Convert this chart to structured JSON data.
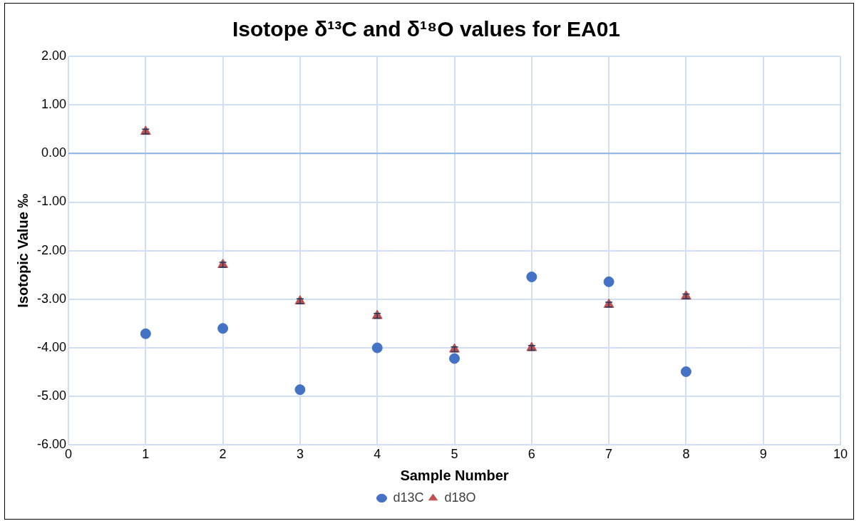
{
  "chart_data": {
    "type": "scatter",
    "title": "Isotope δ¹³C and δ¹⁸O values for EA01",
    "xlabel": "Sample Number",
    "ylabel": "Isotopic Value ‰",
    "x": [
      1,
      2,
      3,
      4,
      5,
      6,
      7,
      8
    ],
    "series": [
      {
        "name": "d13C",
        "color": "#4472c4",
        "marker": "circle",
        "values": [
          -3.71,
          -3.6,
          -4.86,
          -4.0,
          -4.22,
          -2.54,
          -2.64,
          -4.49
        ]
      },
      {
        "name": "d18O",
        "color": "#c0504d",
        "marker": "triangle",
        "values": [
          0.45,
          -2.29,
          -3.04,
          -3.34,
          -4.03,
          -4.0,
          -3.11,
          -2.94
        ],
        "errors": [
          0.05,
          0.05,
          0.05,
          0.05,
          0.05,
          0.05,
          0.05,
          0.05
        ]
      }
    ],
    "xlim": [
      0,
      10
    ],
    "xticks": [
      0,
      1,
      2,
      3,
      4,
      5,
      6,
      7,
      8,
      9,
      10
    ],
    "ylim": [
      -6,
      2
    ],
    "yticks": [
      {
        "value": -6,
        "label": "-6.00"
      },
      {
        "value": -5,
        "label": "-5.00"
      },
      {
        "value": -4,
        "label": "-4.00"
      },
      {
        "value": -3,
        "label": "-3.00"
      },
      {
        "value": -2,
        "label": "-2.00"
      },
      {
        "value": -1,
        "label": "-1.00"
      },
      {
        "value": 0,
        "label": "0.00"
      },
      {
        "value": 1,
        "label": "1.00"
      },
      {
        "value": 2,
        "label": "2.00"
      }
    ],
    "ref_lines": [
      {
        "axis": "y",
        "value": 0,
        "color": "#8eb4e3"
      }
    ],
    "grid": true,
    "legend": "bottom"
  }
}
